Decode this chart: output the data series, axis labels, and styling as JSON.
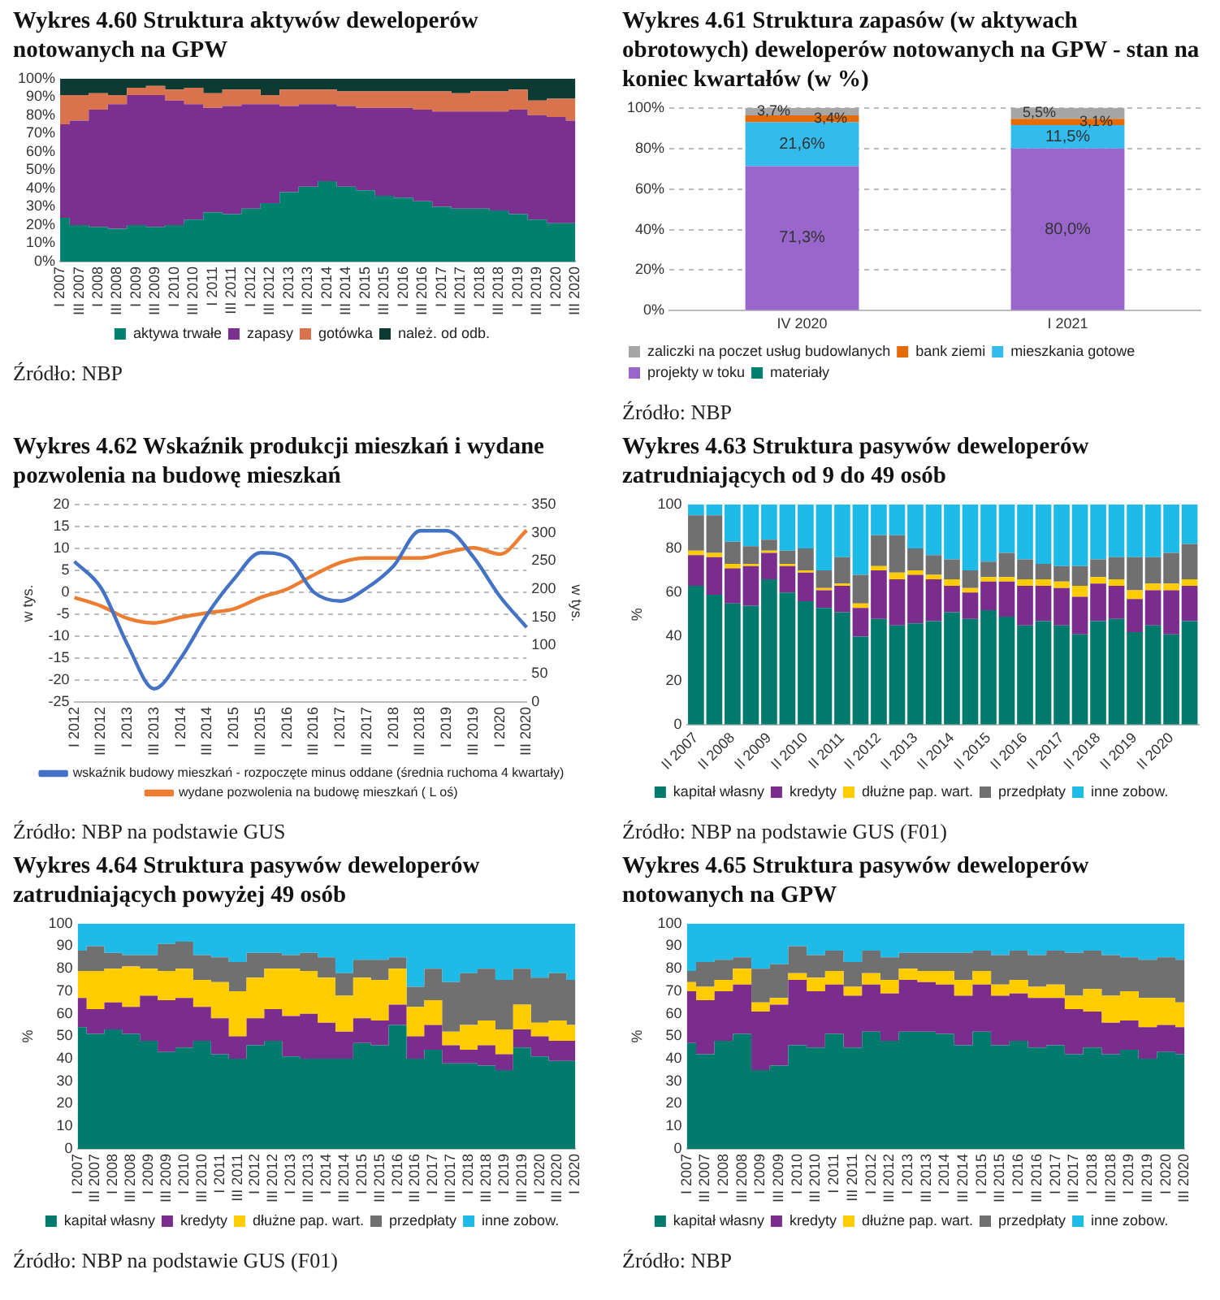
{
  "chart_data": [
    {
      "type": "area",
      "title": "Wykres 4.60 Struktura aktywów deweloperów notowanych na GPW",
      "stacked": true,
      "legend": "bottom",
      "categories": [
        "I 2007",
        "III 2007",
        "I 2008",
        "III 2008",
        "I 2009",
        "III 2009",
        "I 2010",
        "III 2010",
        "I 2011",
        "III 2011",
        "I 2012",
        "III 2012",
        "I 2013",
        "III 2013",
        "I 2014",
        "III 2014",
        "I 2015",
        "III 2015",
        "I 2016",
        "III 2016",
        "I 2017",
        "III 2017",
        "I 2018",
        "III 2018",
        "I 2019",
        "III 2019",
        "I 2020",
        "III 2020"
      ],
      "ylim": [
        0,
        100
      ],
      "yticks": [
        {
          "value": 0,
          "label": "0%"
        },
        {
          "value": 10,
          "label": "10%"
        },
        {
          "value": 20,
          "label": "20%"
        },
        {
          "value": 30,
          "label": "30%"
        },
        {
          "value": 40,
          "label": "40%"
        },
        {
          "value": 50,
          "label": "50%"
        },
        {
          "value": 60,
          "label": "60%"
        },
        {
          "value": 70,
          "label": "70%"
        },
        {
          "value": 80,
          "label": "80%"
        },
        {
          "value": 90,
          "label": "90%"
        },
        {
          "value": 100,
          "label": "100%"
        }
      ],
      "series": [
        {
          "name": "aktywa trwałe",
          "color": "#00806e",
          "values": [
            24,
            20,
            19,
            18,
            20,
            19,
            20,
            23,
            27,
            26,
            29,
            32,
            38,
            41,
            44,
            41,
            39,
            36,
            35,
            33,
            30,
            29,
            29,
            28,
            26,
            23,
            21,
            21
          ]
        },
        {
          "name": "zapasy",
          "color": "#7b2f8e",
          "values": [
            51,
            57,
            64,
            68,
            71,
            72,
            68,
            63,
            57,
            59,
            57,
            54,
            47,
            45,
            42,
            44,
            45,
            48,
            49,
            50,
            52,
            53,
            53,
            54,
            57,
            57,
            58,
            56
          ]
        },
        {
          "name": "gotówka",
          "color": "#d9734e",
          "values": [
            16,
            14,
            9,
            5,
            4,
            5,
            6,
            9,
            8,
            9,
            8,
            5,
            9,
            8,
            8,
            8,
            9,
            9,
            9,
            10,
            11,
            10,
            11,
            11,
            11,
            8,
            10,
            12
          ]
        },
        {
          "name": "należ. od odb.",
          "color": "#0d3b33",
          "values": [
            9,
            9,
            8,
            9,
            5,
            4,
            6,
            5,
            8,
            6,
            6,
            9,
            6,
            6,
            6,
            7,
            7,
            7,
            7,
            7,
            7,
            8,
            7,
            7,
            6,
            12,
            11,
            11
          ]
        }
      ],
      "annotations": [
        "Źródło: NBP"
      ]
    },
    {
      "type": "bar",
      "title": "Wykres 4.61 Struktura zapasów (w aktywach obrotowych) deweloperów notowanych na GPW - stan na koniec kwartałów (w %)",
      "stacked": true,
      "legend": "bottom",
      "grid": "y",
      "categories": [
        "IV 2020",
        "I 2021"
      ],
      "ylim": [
        0,
        100
      ],
      "yticks": [
        {
          "value": 0,
          "label": "0%"
        },
        {
          "value": 20,
          "label": "20%"
        },
        {
          "value": 40,
          "label": "40%"
        },
        {
          "value": 60,
          "label": "60%"
        },
        {
          "value": 80,
          "label": "80%"
        },
        {
          "value": 100,
          "label": "100%"
        }
      ],
      "series": [
        {
          "name": "materiały",
          "color": "#00806e",
          "values": [
            0,
            0
          ]
        },
        {
          "name": "projekty w toku",
          "color": "#9966cc",
          "values": [
            71.3,
            80.0
          ],
          "value_labels": [
            "71,3%",
            "80,0%"
          ]
        },
        {
          "name": "mieszkania gotowe",
          "color": "#33bbee",
          "values": [
            21.6,
            11.5
          ],
          "value_labels": [
            "21,6%",
            "11,5%"
          ]
        },
        {
          "name": "bank ziemi",
          "color": "#e36c09",
          "values": [
            3.4,
            3.1
          ],
          "value_labels": [
            "3,4%",
            "3,1%"
          ]
        },
        {
          "name": "zaliczki na poczet usług budowlanych",
          "color": "#a6a6a6",
          "values": [
            3.7,
            5.5
          ],
          "value_labels": [
            "3,7%",
            "5,5%"
          ]
        }
      ],
      "annotations": [
        "Źródło: NBP"
      ]
    },
    {
      "type": "line",
      "title": "Wykres 4.62 Wskaźnik produkcji mieszkań i wydane pozwolenia na budowę mieszkań",
      "legend": "bottom",
      "grid": "y",
      "ylabel": "w tys.",
      "y2label": "w tys.",
      "categories": [
        "I 2012",
        "III 2012",
        "I 2013",
        "III 2013",
        "I 2014",
        "III 2014",
        "I 2015",
        "III 2015",
        "I 2016",
        "III 2016",
        "I 2017",
        "III 2017",
        "I 2018",
        "III 2018",
        "I 2019",
        "III 2019",
        "I 2020",
        "III 2020"
      ],
      "ylim": [
        -25,
        20
      ],
      "yticks": [
        -25,
        -20,
        -15,
        -10,
        -5,
        0,
        5,
        10,
        15,
        20
      ],
      "y2lim": [
        0,
        350
      ],
      "y2ticks": [
        0,
        50,
        100,
        150,
        200,
        250,
        300,
        350
      ],
      "series": [
        {
          "name": "wskaźnik budowy mieszkań - rozpoczęte minus oddane (średnia ruchoma 4 kwartały)",
          "color": "#4472c4",
          "values": [
            7,
            1,
            -12,
            -22,
            -15,
            -5,
            3,
            9,
            8,
            0,
            -2,
            1,
            6,
            14,
            14,
            8,
            -1,
            -8
          ]
        },
        {
          "name": "wydane pozwolenia na budowę mieszkań ( L oś)",
          "color": "#ed7d31",
          "axis": "y2",
          "values": [
            185,
            170,
            148,
            140,
            150,
            158,
            165,
            185,
            200,
            225,
            247,
            255,
            255,
            255,
            265,
            273,
            262,
            304
          ]
        }
      ],
      "annotations": [
        "Źródło: NBP na podstawie GUS"
      ]
    },
    {
      "type": "bar",
      "title": "Wykres 4.63 Struktura pasywów deweloperów zatrudniających od 9 do 49 osób",
      "stacked": true,
      "legend": "bottom",
      "ylabel": "%",
      "categories": [
        "II 2007",
        null,
        "II 2008",
        null,
        "II 2009",
        null,
        "II 2010",
        null,
        "II 2011",
        null,
        "II 2012",
        null,
        "II 2013",
        null,
        "II 2014",
        null,
        "II 2015",
        null,
        "II 2016",
        null,
        "II 2017",
        null,
        "II 2018",
        null,
        "II 2019",
        null,
        "II 2020",
        null
      ],
      "ylim": [
        0,
        100
      ],
      "yticks": [
        0,
        20,
        40,
        60,
        80,
        100
      ],
      "series": [
        {
          "name": "kapitał własny",
          "color": "#007a6c",
          "values": [
            63,
            59,
            55,
            54,
            66,
            60,
            56,
            53,
            51,
            40,
            48,
            45,
            46,
            47,
            51,
            48,
            52,
            49,
            45,
            47,
            45,
            41,
            47,
            48,
            42,
            45,
            41,
            47
          ]
        },
        {
          "name": "kredyty",
          "color": "#7b2d8e",
          "values": [
            14,
            17,
            16,
            18,
            12,
            12,
            13,
            8,
            12,
            13,
            22,
            21,
            22,
            19,
            12,
            12,
            13,
            16,
            18,
            16,
            17,
            17,
            17,
            15,
            15,
            16,
            20,
            16
          ]
        },
        {
          "name": "dłużne pap. wart.",
          "color": "#ffcc00",
          "values": [
            2,
            2,
            2,
            1,
            1,
            1,
            1,
            1,
            1,
            2,
            2,
            3,
            2,
            2,
            3,
            2,
            2,
            2,
            3,
            3,
            3,
            5,
            3,
            3,
            4,
            3,
            3,
            3
          ]
        },
        {
          "name": "przedpłaty",
          "color": "#707070",
          "values": [
            16,
            17,
            10,
            8,
            5,
            6,
            10,
            8,
            12,
            13,
            14,
            17,
            10,
            9,
            9,
            8,
            7,
            11,
            9,
            7,
            7,
            9,
            8,
            10,
            15,
            12,
            14,
            16
          ]
        },
        {
          "name": "inne zobow.",
          "color": "#1fbbe8",
          "values": [
            5,
            5,
            17,
            19,
            16,
            21,
            20,
            30,
            24,
            32,
            14,
            14,
            20,
            23,
            25,
            30,
            26,
            22,
            25,
            27,
            28,
            28,
            25,
            24,
            24,
            24,
            22,
            18
          ]
        }
      ],
      "annotations": [
        "Źródło: NBP na podstawie GUS (F01)"
      ]
    },
    {
      "type": "area",
      "title": "Wykres 4.64 Struktura pasywów deweloperów zatrudniających powyżej 49 osób",
      "stacked": true,
      "legend": "bottom",
      "ylabel": "%",
      "categories": [
        "I 2007",
        "III 2007",
        "I 2008",
        "III 2008",
        "I 2009",
        "III 2009",
        "I 2010",
        "III 2010",
        "I 2011",
        "III 2011",
        "I 2012",
        "III 2012",
        "I 2013",
        "III 2013",
        "I 2014",
        "III 2014",
        "I 2015",
        "III 2015",
        "I 2016",
        "III 2016",
        "I 2017",
        "III 2017",
        "I 2018",
        "III 2018",
        "I 2019",
        "III 2019",
        "I 2020",
        "III 2020",
        "I 2020"
      ],
      "ylim": [
        0,
        100
      ],
      "yticks": [
        0,
        10,
        20,
        30,
        40,
        50,
        60,
        70,
        80,
        90,
        100
      ],
      "series": [
        {
          "name": "kapitał własny",
          "color": "#007a6c",
          "values": [
            54,
            51,
            53,
            51,
            48,
            43,
            45,
            48,
            42,
            40,
            46,
            48,
            41,
            40,
            40,
            40,
            47,
            46,
            55,
            40,
            44,
            38,
            38,
            37,
            35,
            45,
            41,
            39,
            39
          ]
        },
        {
          "name": "kredyty",
          "color": "#7b2d8e",
          "values": [
            13,
            11,
            12,
            12,
            20,
            23,
            22,
            15,
            16,
            10,
            12,
            14,
            18,
            20,
            16,
            12,
            11,
            11,
            9,
            10,
            11,
            8,
            6,
            9,
            7,
            8,
            9,
            9,
            9
          ]
        },
        {
          "name": "dłużne pap. wart.",
          "color": "#ffcc00",
          "values": [
            12,
            17,
            15,
            18,
            12,
            13,
            13,
            12,
            16,
            20,
            18,
            18,
            21,
            19,
            20,
            16,
            18,
            18,
            16,
            13,
            11,
            6,
            11,
            11,
            11,
            11,
            6,
            9,
            7
          ]
        },
        {
          "name": "przedpłaty",
          "color": "#707070",
          "values": [
            9,
            11,
            7,
            5,
            6,
            12,
            12,
            11,
            11,
            13,
            11,
            7,
            6,
            8,
            9,
            10,
            8,
            9,
            5,
            9,
            14,
            22,
            23,
            23,
            22,
            16,
            20,
            21,
            20
          ]
        },
        {
          "name": "inne zobow.",
          "color": "#1fbbe8",
          "values": [
            12,
            10,
            13,
            14,
            14,
            9,
            8,
            14,
            15,
            17,
            13,
            13,
            14,
            13,
            15,
            22,
            16,
            16,
            15,
            28,
            20,
            26,
            22,
            20,
            25,
            20,
            24,
            22,
            25
          ]
        }
      ],
      "annotations": [
        "Źródło: NBP na podstawie GUS (F01)"
      ]
    },
    {
      "type": "area",
      "title": "Wykres 4.65 Struktura pasywów deweloperów notowanych na GPW",
      "stacked": true,
      "legend": "bottom",
      "ylabel": "%",
      "categories": [
        "I 2007",
        "III 2007",
        "I 2008",
        "III 2008",
        "I 2009",
        "III 2009",
        "I 2010",
        "III 2010",
        "I 2011",
        "III 2011",
        "I 2012",
        "III 2012",
        "I 2013",
        "III 2013",
        "I 2014",
        "III 2014",
        "I 2015",
        "III 2015",
        "I 2016",
        "III 2016",
        "I 2017",
        "III 2017",
        "I 2018",
        "III 2018",
        "I 2019",
        "III 2019",
        "I 2020",
        "III 2020"
      ],
      "ylim": [
        0,
        100
      ],
      "yticks": [
        0,
        10,
        20,
        30,
        40,
        50,
        60,
        70,
        80,
        90,
        100
      ],
      "series": [
        {
          "name": "kapitał własny",
          "color": "#007a6c",
          "values": [
            47,
            42,
            48,
            51,
            35,
            37,
            46,
            45,
            51,
            45,
            52,
            48,
            52,
            52,
            51,
            46,
            52,
            46,
            48,
            45,
            46,
            42,
            45,
            42,
            44,
            40,
            43,
            42
          ]
        },
        {
          "name": "kredyty",
          "color": "#7b2d8e",
          "values": [
            23,
            24,
            22,
            22,
            26,
            27,
            29,
            25,
            22,
            23,
            21,
            21,
            23,
            22,
            22,
            22,
            21,
            22,
            21,
            22,
            21,
            20,
            16,
            14,
            13,
            14,
            12,
            12
          ]
        },
        {
          "name": "dłużne pap. wart.",
          "color": "#ffcc00",
          "values": [
            4,
            6,
            5,
            7,
            4,
            3,
            3,
            6,
            6,
            4,
            5,
            6,
            5,
            5,
            6,
            7,
            6,
            5,
            6,
            5,
            6,
            6,
            10,
            12,
            13,
            13,
            12,
            11
          ]
        },
        {
          "name": "przedpłaty",
          "color": "#707070",
          "values": [
            5,
            11,
            9,
            5,
            15,
            15,
            12,
            10,
            9,
            11,
            10,
            10,
            7,
            8,
            8,
            12,
            9,
            13,
            13,
            14,
            15,
            19,
            17,
            18,
            15,
            17,
            18,
            19
          ]
        },
        {
          "name": "inne zobow.",
          "color": "#1fbbe8",
          "values": [
            21,
            17,
            16,
            15,
            20,
            18,
            10,
            14,
            12,
            17,
            12,
            15,
            13,
            13,
            13,
            13,
            12,
            14,
            12,
            14,
            12,
            13,
            12,
            14,
            15,
            16,
            15,
            16
          ]
        }
      ],
      "annotations": [
        "Źródło: NBP"
      ]
    }
  ]
}
